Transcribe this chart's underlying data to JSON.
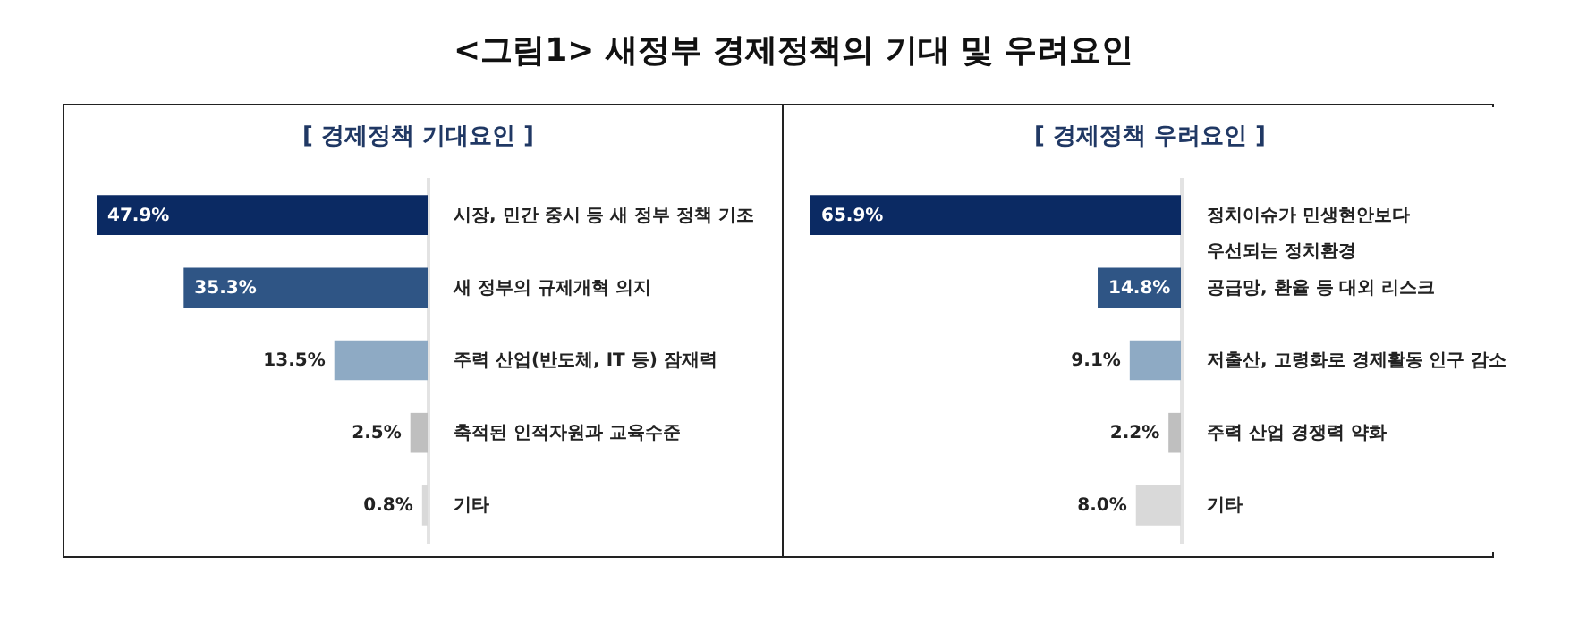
{
  "chart_data": [
    {
      "type": "bar",
      "orientation": "horizontal",
      "title": "<그림1> 새정부 경제정책의 기대 및 우려요인",
      "subtitle": "[ 경제정책 기대요인 ]",
      "categories": [
        "시장, 민간 중시 등 새 정부 정책 기조",
        "새 정부의 규제개혁 의지",
        "주력 산업(반도체, IT 등) 잠재력",
        "축적된 인적자원과 교육수준",
        "기타"
      ],
      "values": [
        47.9,
        35.3,
        13.5,
        2.5,
        0.8
      ],
      "value_labels": [
        "47.9%",
        "35.3%",
        "13.5%",
        "2.5%",
        "0.8%"
      ],
      "colors": [
        "#0b2a63",
        "#2f5585",
        "#8eaac4",
        "#bfbfbf",
        "#d9d9d9"
      ]
    },
    {
      "type": "bar",
      "orientation": "horizontal",
      "title": "[ 경제정책 우려요인 ]",
      "categories": [
        "정치이슈가 민생현안보다\n우선되는 정치환경",
        "공급망, 환율 등 대외 리스크",
        "저출산, 고령화로 경제활동 인구 감소",
        "주력 산업 경쟁력 약화",
        "기타"
      ],
      "values": [
        65.9,
        14.8,
        9.1,
        2.2,
        8.0
      ],
      "value_labels": [
        "65.9%",
        "14.8%",
        "9.1%",
        "2.2%",
        "8.0%"
      ],
      "colors": [
        "#0b2a63",
        "#2f5585",
        "#8eaac4",
        "#bfbfbf",
        "#d9d9d9"
      ]
    }
  ]
}
